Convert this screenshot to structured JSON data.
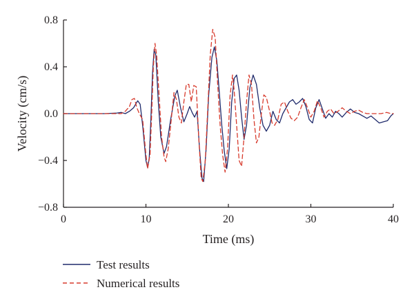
{
  "chart_data": {
    "type": "line",
    "xlabel": "Time (ms)",
    "ylabel": "Velocity (cm/s)",
    "xlim": [
      0,
      40
    ],
    "ylim": [
      -0.8,
      0.8
    ],
    "x_ticks": [
      0,
      10,
      20,
      30,
      40
    ],
    "y_ticks": [
      -0.8,
      -0.4,
      0.0,
      0.4,
      0.8
    ],
    "x_tick_labels": [
      "0",
      "10",
      "20",
      "30",
      "40"
    ],
    "y_tick_labels": [
      "−0.8",
      "−0.4",
      "0.0",
      "0.4",
      "0.8"
    ],
    "grid": false,
    "legend_position": "bottom-left",
    "series": [
      {
        "name": "Test results",
        "color": "#1f2a6b",
        "dash": "solid",
        "points": [
          [
            0,
            0
          ],
          [
            5,
            0
          ],
          [
            6.5,
            0.005
          ],
          [
            7,
            0.01
          ],
          [
            7.5,
            0.0
          ],
          [
            8,
            0.02
          ],
          [
            8.5,
            0.05
          ],
          [
            9,
            0.11
          ],
          [
            9.3,
            0.08
          ],
          [
            9.6,
            -0.1
          ],
          [
            10,
            -0.4
          ],
          [
            10.2,
            -0.46
          ],
          [
            10.4,
            -0.38
          ],
          [
            10.6,
            -0.05
          ],
          [
            10.8,
            0.35
          ],
          [
            11,
            0.55
          ],
          [
            11.2,
            0.5
          ],
          [
            11.5,
            0.1
          ],
          [
            11.8,
            -0.2
          ],
          [
            12.2,
            -0.34
          ],
          [
            12.5,
            -0.28
          ],
          [
            13,
            -0.05
          ],
          [
            13.5,
            0.15
          ],
          [
            13.8,
            0.2
          ],
          [
            14.2,
            0.05
          ],
          [
            14.6,
            -0.07
          ],
          [
            15,
            0.0
          ],
          [
            15.3,
            0.06
          ],
          [
            15.6,
            0.01
          ],
          [
            15.9,
            -0.03
          ],
          [
            16.2,
            0.02
          ],
          [
            16.5,
            -0.3
          ],
          [
            16.8,
            -0.55
          ],
          [
            17,
            -0.58
          ],
          [
            17.3,
            -0.3
          ],
          [
            17.6,
            0.15
          ],
          [
            18,
            0.48
          ],
          [
            18.3,
            0.57
          ],
          [
            18.6,
            0.45
          ],
          [
            18.9,
            0.18
          ],
          [
            19.2,
            -0.1
          ],
          [
            19.5,
            -0.32
          ],
          [
            19.8,
            -0.47
          ],
          [
            20.1,
            -0.3
          ],
          [
            20.4,
            0.1
          ],
          [
            20.7,
            0.3
          ],
          [
            21,
            0.33
          ],
          [
            21.3,
            0.2
          ],
          [
            21.6,
            -0.03
          ],
          [
            21.9,
            -0.22
          ],
          [
            22.2,
            -0.1
          ],
          [
            22.6,
            0.22
          ],
          [
            23,
            0.33
          ],
          [
            23.4,
            0.25
          ],
          [
            23.8,
            0.05
          ],
          [
            24.2,
            -0.1
          ],
          [
            24.6,
            -0.15
          ],
          [
            25,
            -0.1
          ],
          [
            25.4,
            0.02
          ],
          [
            25.8,
            -0.05
          ],
          [
            26.2,
            -0.08
          ],
          [
            26.6,
            0.0
          ],
          [
            27,
            0.05
          ],
          [
            27.4,
            0.1
          ],
          [
            27.8,
            0.12
          ],
          [
            28.2,
            0.08
          ],
          [
            28.6,
            0.1
          ],
          [
            29,
            0.13
          ],
          [
            29.4,
            0.06
          ],
          [
            29.8,
            -0.05
          ],
          [
            30.2,
            -0.08
          ],
          [
            30.6,
            0.05
          ],
          [
            31,
            0.12
          ],
          [
            31.4,
            0.04
          ],
          [
            31.8,
            -0.04
          ],
          [
            32.2,
            0.0
          ],
          [
            32.6,
            -0.03
          ],
          [
            33,
            0.02
          ],
          [
            33.4,
            0.0
          ],
          [
            33.8,
            -0.03
          ],
          [
            34.3,
            0.01
          ],
          [
            34.8,
            0.04
          ],
          [
            35.3,
            0.01
          ],
          [
            35.8,
            0.0
          ],
          [
            36.3,
            -0.02
          ],
          [
            36.8,
            -0.04
          ],
          [
            37.3,
            -0.02
          ],
          [
            37.8,
            -0.05
          ],
          [
            38.3,
            -0.08
          ],
          [
            38.8,
            -0.07
          ],
          [
            39.3,
            -0.06
          ],
          [
            39.7,
            -0.02
          ],
          [
            40,
            0.0
          ]
        ]
      },
      {
        "name": "Numerical results",
        "color": "#d7392b",
        "dash": "dashed",
        "points": [
          [
            0,
            0
          ],
          [
            5,
            0
          ],
          [
            6,
            0.0
          ],
          [
            7,
            0.0
          ],
          [
            7.5,
            0.02
          ],
          [
            8,
            0.06
          ],
          [
            8.3,
            0.12
          ],
          [
            8.6,
            0.13
          ],
          [
            8.9,
            0.05
          ],
          [
            9.2,
            0.0
          ],
          [
            9.6,
            -0.05
          ],
          [
            10,
            -0.35
          ],
          [
            10.2,
            -0.47
          ],
          [
            10.5,
            -0.35
          ],
          [
            10.7,
            0.0
          ],
          [
            10.9,
            0.4
          ],
          [
            11.1,
            0.6
          ],
          [
            11.3,
            0.5
          ],
          [
            11.6,
            0.15
          ],
          [
            11.9,
            -0.2
          ],
          [
            12.2,
            -0.37
          ],
          [
            12.4,
            -0.41
          ],
          [
            12.7,
            -0.3
          ],
          [
            13,
            -0.1
          ],
          [
            13.4,
            0.18
          ],
          [
            13.7,
            0.12
          ],
          [
            14,
            -0.03
          ],
          [
            14.3,
            -0.08
          ],
          [
            14.6,
            0.1
          ],
          [
            14.9,
            0.25
          ],
          [
            15.2,
            0.25
          ],
          [
            15.5,
            0.1
          ],
          [
            15.8,
            0.24
          ],
          [
            16.1,
            0.23
          ],
          [
            16.4,
            -0.2
          ],
          [
            16.7,
            -0.55
          ],
          [
            16.9,
            -0.58
          ],
          [
            17.2,
            -0.4
          ],
          [
            17.5,
            0.05
          ],
          [
            17.8,
            0.5
          ],
          [
            18.1,
            0.72
          ],
          [
            18.4,
            0.65
          ],
          [
            18.7,
            0.25
          ],
          [
            19,
            -0.1
          ],
          [
            19.3,
            -0.35
          ],
          [
            19.6,
            -0.5
          ],
          [
            19.9,
            -0.3
          ],
          [
            20.2,
            0.15
          ],
          [
            20.5,
            0.33
          ],
          [
            20.7,
            0.2
          ],
          [
            21,
            -0.1
          ],
          [
            21.3,
            -0.4
          ],
          [
            21.6,
            -0.45
          ],
          [
            21.9,
            -0.2
          ],
          [
            22.2,
            0.1
          ],
          [
            22.5,
            0.33
          ],
          [
            22.8,
            0.25
          ],
          [
            23.1,
            -0.05
          ],
          [
            23.4,
            -0.25
          ],
          [
            23.7,
            -0.2
          ],
          [
            24,
            0.0
          ],
          [
            24.3,
            0.16
          ],
          [
            24.6,
            0.14
          ],
          [
            25,
            0.02
          ],
          [
            25.3,
            -0.08
          ],
          [
            25.6,
            -0.1
          ],
          [
            26,
            -0.05
          ],
          [
            26.4,
            0.08
          ],
          [
            26.8,
            0.1
          ],
          [
            27.2,
            0.02
          ],
          [
            27.6,
            -0.04
          ],
          [
            28,
            -0.06
          ],
          [
            28.4,
            -0.03
          ],
          [
            28.8,
            0.05
          ],
          [
            29.2,
            0.12
          ],
          [
            29.6,
            0.05
          ],
          [
            30,
            -0.03
          ],
          [
            30.4,
            0.02
          ],
          [
            30.8,
            0.11
          ],
          [
            31.2,
            0.05
          ],
          [
            31.6,
            -0.03
          ],
          [
            32,
            0.02
          ],
          [
            32.4,
            0.04
          ],
          [
            32.8,
            0.0
          ],
          [
            33.3,
            0.02
          ],
          [
            33.8,
            0.05
          ],
          [
            34.3,
            0.02
          ],
          [
            34.8,
            0.0
          ],
          [
            35.3,
            0.02
          ],
          [
            35.8,
            0.03
          ],
          [
            36.3,
            0.01
          ],
          [
            36.8,
            0.0
          ],
          [
            37.5,
            0.0
          ],
          [
            38.5,
            0.0
          ],
          [
            39.2,
            0.01
          ],
          [
            39.7,
            0.0
          ],
          [
            40,
            0.0
          ]
        ]
      }
    ]
  }
}
